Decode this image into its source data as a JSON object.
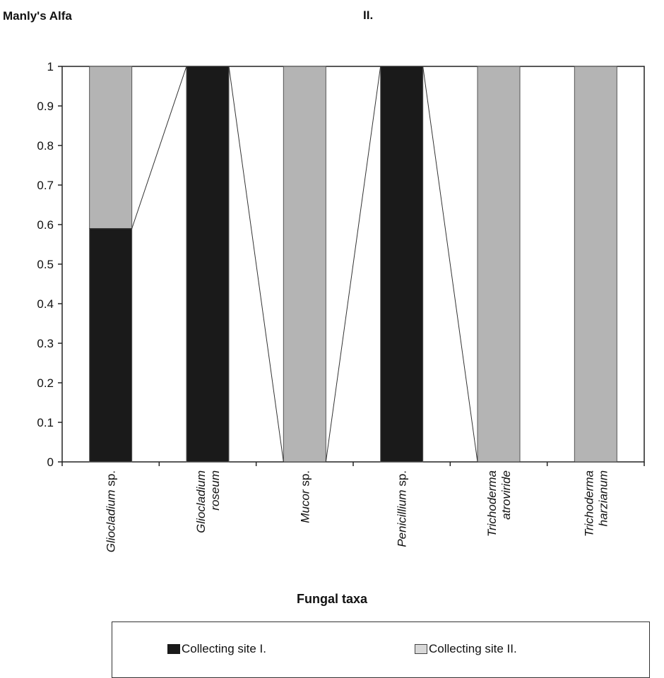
{
  "chart_data": {
    "type": "bar",
    "stacked": true,
    "ylabel": "Manly's Alfa",
    "title": "II.",
    "xlabel": "Fungal taxa",
    "ylim": [
      0,
      1
    ],
    "yticks": [
      "0",
      "0.1",
      "0.2",
      "0.3",
      "0.4",
      "0.5",
      "0.6",
      "0.7",
      "0.8",
      "0.9",
      "1"
    ],
    "categories": [
      {
        "italic": "Gliocladium",
        "suffix": " sp.",
        "line2": ""
      },
      {
        "italic": "Gliocladium",
        "suffix": "",
        "line2": "roseum"
      },
      {
        "italic": "Mucor",
        "suffix": " sp.",
        "line2": ""
      },
      {
        "italic": "Penicillium",
        "suffix": " sp.",
        "line2": ""
      },
      {
        "italic": "Trichoderma",
        "suffix": "",
        "line2": "atroviride"
      },
      {
        "italic": "Trichoderma",
        "suffix": "",
        "line2": "harzianum"
      }
    ],
    "series": [
      {
        "name": "Collecting site I.",
        "color": "#1a1a1a",
        "values": [
          0.59,
          1,
          0,
          1,
          0,
          0
        ]
      },
      {
        "name": "Collecting site II.",
        "color": "#b4b4b4",
        "values": [
          0.41,
          0,
          1,
          0,
          1,
          1
        ]
      }
    ],
    "connector_line": "series-1-tops",
    "grid": false,
    "legend_position": "bottom"
  }
}
